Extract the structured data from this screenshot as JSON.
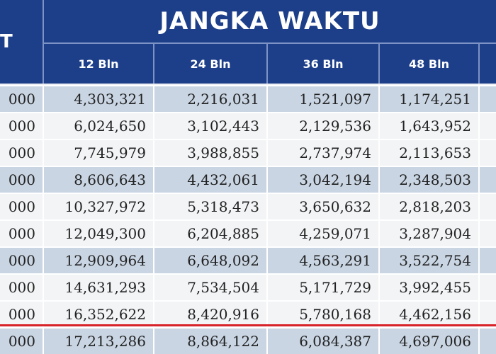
{
  "table": {
    "left_header": "T",
    "title": "JANGKA WAKTU",
    "columns": [
      "12 Bln",
      "24 Bln",
      "36 Bln",
      "48 Bln"
    ],
    "rows": [
      [
        "000",
        "4,303,321",
        "2,216,031",
        "1,521,097",
        "1,174,251"
      ],
      [
        "000",
        "6,024,650",
        "3,102,443",
        "2,129,536",
        "1,643,952"
      ],
      [
        "000",
        "7,745,979",
        "3,988,855",
        "2,737,974",
        "2,113,653"
      ],
      [
        "000",
        "8,606,643",
        "4,432,061",
        "3,042,194",
        "2,348,503"
      ],
      [
        "000",
        "10,327,972",
        "5,318,473",
        "3,650,632",
        "2,818,203"
      ],
      [
        "000",
        "12,049,300",
        "6,204,885",
        "4,259,071",
        "3,287,904"
      ],
      [
        "000",
        "12,909,964",
        "6,648,092",
        "4,563,291",
        "3,522,754"
      ],
      [
        "000",
        "14,631,293",
        "7,534,504",
        "5,171,729",
        "3,992,455"
      ],
      [
        "000",
        "16,352,622",
        "8,420,916",
        "5,780,168",
        "4,462,156"
      ],
      [
        "000",
        "17,213,286",
        "8,864,122",
        "6,084,387",
        "4,697,006"
      ]
    ]
  }
}
